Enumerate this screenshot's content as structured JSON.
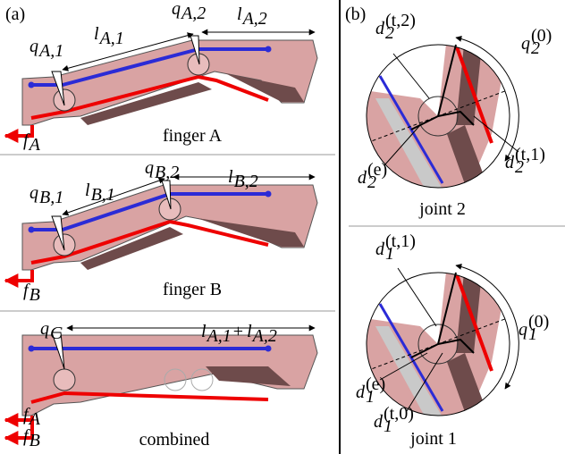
{
  "panel_a": {
    "label": "(a)",
    "fingers": [
      {
        "caption": "finger A",
        "labels": [
          [
            {
              "base": "q",
              "sub": "A,1"
            }
          ],
          [
            {
              "base": "l",
              "sub": "A,1"
            }
          ],
          [
            {
              "base": "q",
              "sub": "A,2"
            }
          ],
          [
            {
              "base": "l",
              "sub": "A,2"
            }
          ],
          [
            {
              "base": "f",
              "sub": "A"
            }
          ]
        ]
      },
      {
        "caption": "finger B",
        "labels": [
          [
            {
              "base": "q",
              "sub": "B,1"
            }
          ],
          [
            {
              "base": "l",
              "sub": "B,1"
            }
          ],
          [
            {
              "base": "q",
              "sub": "B,2"
            }
          ],
          [
            {
              "base": "l",
              "sub": "B,2"
            }
          ],
          [
            {
              "base": "f",
              "sub": "B"
            }
          ]
        ]
      },
      {
        "caption": "combined",
        "labels": [
          [
            {
              "base": "q",
              "sub": "C"
            }
          ],
          [
            {
              "base": "l",
              "sub": "A,1"
            },
            {
              "text": " + "
            },
            {
              "base": "l",
              "sub": "A,2"
            }
          ],
          [
            {
              "base": "f",
              "sub": "A"
            }
          ],
          [
            {
              "base": "f",
              "sub": "B"
            }
          ]
        ]
      }
    ]
  },
  "panel_b": {
    "label": "(b)",
    "joints": [
      {
        "caption": "joint 2",
        "labels": [
          [
            {
              "base": "d",
              "sub": "2",
              "sup": "(t,2)"
            }
          ],
          [
            {
              "base": "q",
              "sub": "2",
              "sup": "(0)"
            }
          ],
          [
            {
              "base": "d",
              "sub": "2",
              "sup": "(e)"
            }
          ],
          [
            {
              "base": "d",
              "sub": "2",
              "sup": "(t,1)"
            }
          ]
        ]
      },
      {
        "caption": "joint 1",
        "labels": [
          [
            {
              "base": "d",
              "sub": "1",
              "sup": "(t,1)"
            }
          ],
          [
            {
              "base": "q",
              "sub": "1",
              "sup": "(0)"
            }
          ],
          [
            {
              "base": "d",
              "sub": "1",
              "sup": "(e)"
            }
          ],
          [
            {
              "base": "d",
              "sub": "1",
              "sup": "(t,0)"
            }
          ]
        ]
      }
    ]
  }
}
